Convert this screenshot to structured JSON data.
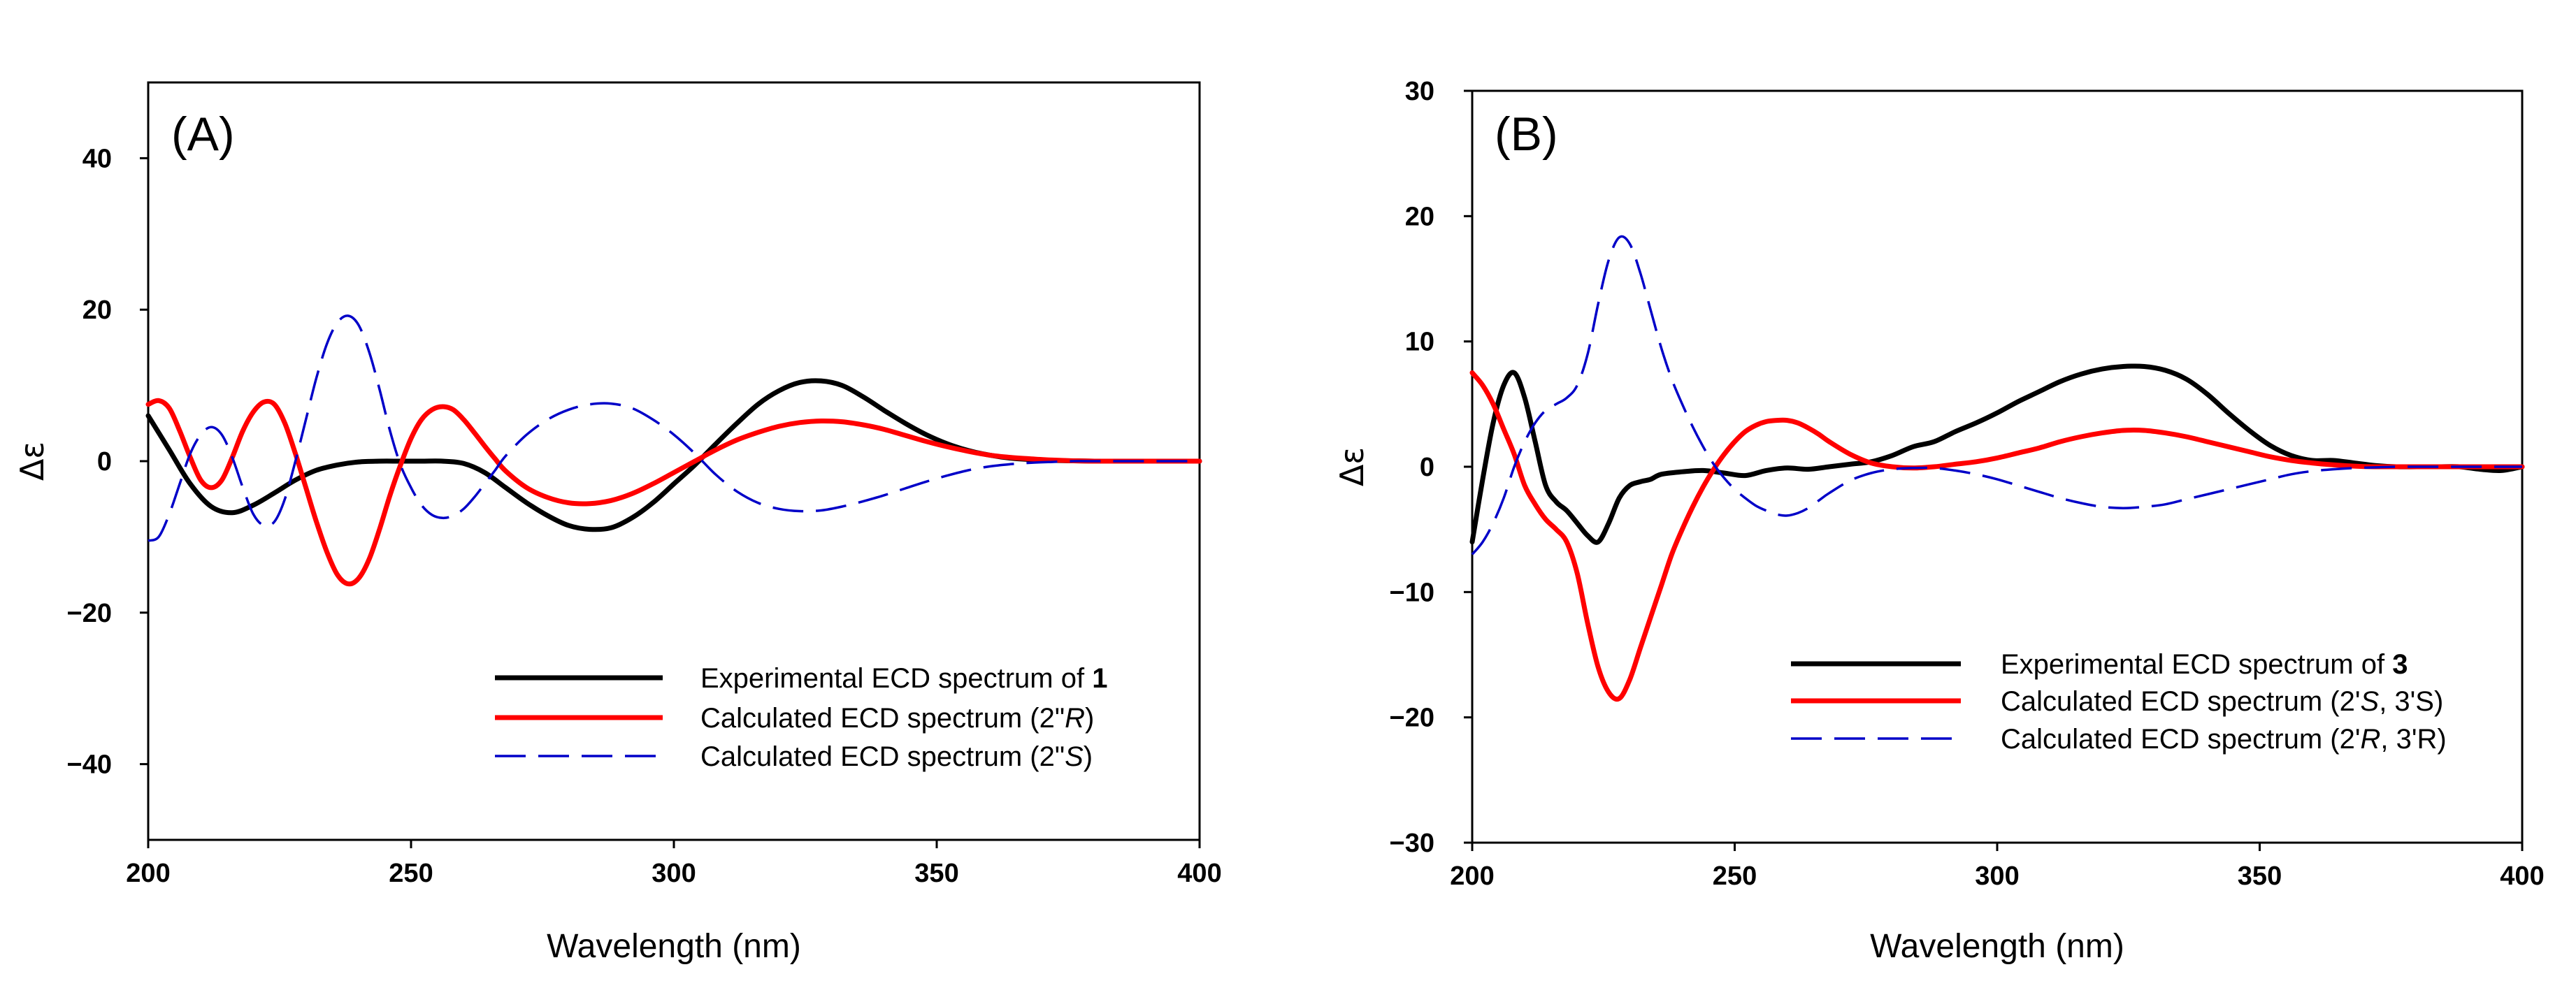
{
  "chart_data": [
    {
      "type": "line",
      "panel_label": "(A)",
      "title": "",
      "xlabel": "Wavelength (nm)",
      "ylabel": "Δε",
      "xlim": [
        200,
        400
      ],
      "ylim": [
        -50,
        50
      ],
      "x_ticks": [
        200,
        250,
        300,
        350,
        400
      ],
      "x_tick_labels": [
        "200",
        "250",
        "300",
        "350",
        "400"
      ],
      "y_ticks": [
        -40,
        -20,
        0,
        20,
        40
      ],
      "y_tick_labels": [
        "−40",
        "−20",
        "0",
        "20",
        "40"
      ],
      "legend_position": "bottom-right",
      "series": [
        {
          "name": "Experimental ECD spectrum of 1",
          "legend_text": "Experimental ECD spectrum of ",
          "legend_bold": "1",
          "legend_italic": "",
          "legend_suffix": "",
          "color": "#000000",
          "style": "solid",
          "x": [
            200,
            204,
            208,
            212,
            216,
            220,
            224,
            228,
            232,
            236,
            240,
            244,
            248,
            252,
            256,
            260,
            264,
            268,
            272,
            276,
            280,
            284,
            288,
            292,
            296,
            300,
            304,
            308,
            312,
            316,
            320,
            324,
            328,
            332,
            336,
            340,
            344,
            348,
            352,
            356,
            360,
            364,
            368,
            372,
            376,
            380,
            384,
            388,
            392,
            396,
            400
          ],
          "y": [
            6,
            1.5,
            -3,
            -6,
            -6.8,
            -5.8,
            -4.2,
            -2.5,
            -1.2,
            -0.5,
            -0.1,
            0,
            0,
            0,
            0,
            -0.3,
            -1.5,
            -3.5,
            -5.5,
            -7.2,
            -8.5,
            -9,
            -8.8,
            -7.5,
            -5.5,
            -3,
            -0.5,
            2.3,
            5,
            7.5,
            9.3,
            10.4,
            10.6,
            10,
            8.5,
            6.7,
            5,
            3.5,
            2.3,
            1.4,
            0.8,
            0.4,
            0.2,
            0.1,
            0.05,
            0,
            0,
            0,
            0,
            0,
            0
          ]
        },
        {
          "name": "Calculated ECD spectrum (2\"R)",
          "legend_text": "Calculated ECD spectrum (2\"",
          "legend_bold": "",
          "legend_italic": "R",
          "legend_suffix": ")",
          "color": "#ff0000",
          "style": "solid",
          "x": [
            200,
            202,
            204,
            206,
            208,
            210,
            212,
            214,
            216,
            218,
            220,
            222,
            224,
            226,
            228,
            230,
            232,
            234,
            236,
            238,
            240,
            242,
            244,
            246,
            248,
            250,
            252,
            254,
            256,
            258,
            260,
            262,
            264,
            266,
            268,
            272,
            276,
            280,
            284,
            288,
            292,
            296,
            300,
            304,
            308,
            312,
            316,
            320,
            324,
            328,
            332,
            336,
            340,
            344,
            348,
            352,
            356,
            360,
            364,
            368,
            372,
            376,
            380,
            384,
            388,
            392,
            396,
            400
          ],
          "y": [
            7.5,
            8,
            7,
            4,
            0.5,
            -2.5,
            -3.5,
            -2.5,
            0.5,
            4,
            6.5,
            7.8,
            7.5,
            5,
            1,
            -3.5,
            -8,
            -12,
            -15,
            -16.2,
            -15.5,
            -13,
            -9,
            -4.5,
            -0.5,
            3,
            5.5,
            6.8,
            7.2,
            6.8,
            5.5,
            3.8,
            2,
            0.3,
            -1.3,
            -3.5,
            -4.8,
            -5.5,
            -5.6,
            -5.2,
            -4.3,
            -3,
            -1.5,
            0,
            1.5,
            2.8,
            3.8,
            4.6,
            5.1,
            5.3,
            5.2,
            4.8,
            4.2,
            3.4,
            2.6,
            1.9,
            1.3,
            0.8,
            0.5,
            0.3,
            0.15,
            0.05,
            0,
            0,
            0,
            0,
            0,
            0
          ]
        },
        {
          "name": "Calculated ECD spectrum (2\"S)",
          "legend_text": "Calculated ECD spectrum (2\"",
          "legend_bold": "",
          "legend_italic": "S",
          "legend_suffix": ")",
          "color": "#0000c8",
          "style": "dashed",
          "x": [
            200,
            202,
            204,
            206,
            208,
            210,
            212,
            214,
            216,
            218,
            220,
            222,
            224,
            226,
            228,
            230,
            232,
            234,
            236,
            238,
            240,
            242,
            244,
            246,
            248,
            250,
            252,
            254,
            256,
            258,
            260,
            262,
            264,
            266,
            268,
            272,
            276,
            280,
            284,
            288,
            292,
            296,
            300,
            304,
            308,
            312,
            316,
            320,
            324,
            328,
            332,
            336,
            340,
            344,
            348,
            352,
            356,
            360,
            364,
            368,
            372,
            376,
            380,
            384,
            388,
            392,
            396,
            400
          ],
          "y": [
            -10.5,
            -10,
            -7,
            -3,
            1,
            3.5,
            4.5,
            3.5,
            0.5,
            -3.5,
            -7,
            -8.5,
            -8,
            -5,
            0,
            5.5,
            11,
            15.5,
            18.3,
            19.2,
            18,
            14.5,
            9.5,
            4,
            -0.5,
            -3.5,
            -5.8,
            -7.1,
            -7.5,
            -7.2,
            -6.3,
            -4.8,
            -3,
            -1.2,
            0.7,
            3.5,
            5.5,
            6.8,
            7.5,
            7.6,
            7,
            5.5,
            3.5,
            1,
            -1.8,
            -4,
            -5.5,
            -6.3,
            -6.6,
            -6.5,
            -6,
            -5.3,
            -4.5,
            -3.6,
            -2.7,
            -1.9,
            -1.2,
            -0.7,
            -0.4,
            -0.2,
            -0.1,
            0,
            0,
            0,
            0,
            0,
            0,
            0
          ]
        }
      ]
    },
    {
      "type": "line",
      "panel_label": "(B)",
      "title": "",
      "xlabel": "Wavelength (nm)",
      "ylabel": "Δε",
      "xlim": [
        200,
        400
      ],
      "ylim": [
        -30,
        30
      ],
      "x_ticks": [
        200,
        250,
        300,
        350,
        400
      ],
      "x_tick_labels": [
        "200",
        "250",
        "300",
        "350",
        "400"
      ],
      "y_ticks": [
        -30,
        -20,
        -10,
        0,
        10,
        20,
        30
      ],
      "y_tick_labels": [
        "−30",
        "−20",
        "−10",
        "0",
        "10",
        "20",
        "30"
      ],
      "legend_position": "bottom-right",
      "series": [
        {
          "name": "Experimental ECD spectrum of 3",
          "legend_text": "Experimental ECD spectrum of ",
          "legend_bold": "3",
          "legend_italic": "",
          "legend_suffix": "",
          "color": "#000000",
          "style": "solid",
          "x": [
            200,
            202,
            204,
            206,
            208,
            210,
            212,
            214,
            216,
            218,
            220,
            222,
            224,
            226,
            228,
            230,
            232,
            234,
            236,
            240,
            244,
            248,
            252,
            256,
            260,
            264,
            268,
            272,
            276,
            280,
            284,
            288,
            292,
            296,
            300,
            304,
            308,
            312,
            316,
            320,
            324,
            328,
            332,
            336,
            340,
            344,
            348,
            352,
            356,
            360,
            364,
            368,
            372,
            376,
            380,
            384,
            388,
            392,
            396,
            400
          ],
          "y": [
            -6,
            -1,
            3.5,
            6.5,
            7.5,
            5.5,
            2,
            -1.5,
            -2.8,
            -3.5,
            -4.5,
            -5.5,
            -6,
            -4.5,
            -2.5,
            -1.5,
            -1.2,
            -1,
            -0.6,
            -0.4,
            -0.3,
            -0.5,
            -0.7,
            -0.3,
            -0.1,
            -0.2,
            0,
            0.2,
            0.4,
            0.9,
            1.6,
            2,
            2.8,
            3.5,
            4.3,
            5.2,
            6,
            6.8,
            7.4,
            7.8,
            8,
            8,
            7.7,
            7,
            5.8,
            4.3,
            2.9,
            1.7,
            0.9,
            0.5,
            0.5,
            0.3,
            0.1,
            0,
            0,
            0,
            0,
            -0.2,
            -0.3,
            0
          ]
        },
        {
          "name": "Calculated ECD spectrum (2'S, 3'S)",
          "legend_text": "Calculated ECD spectrum (2'",
          "legend_bold": "",
          "legend_italic": "S",
          "legend_suffix": ", 3'S)",
          "color": "#ff0000",
          "style": "solid",
          "x": [
            200,
            202,
            204,
            206,
            208,
            210,
            212,
            214,
            216,
            218,
            220,
            222,
            224,
            226,
            228,
            230,
            232,
            234,
            236,
            238,
            240,
            242,
            244,
            246,
            248,
            250,
            252,
            254,
            256,
            258,
            260,
            262,
            264,
            266,
            268,
            272,
            276,
            280,
            284,
            288,
            292,
            296,
            300,
            304,
            308,
            312,
            316,
            320,
            324,
            328,
            332,
            336,
            340,
            344,
            348,
            352,
            356,
            360,
            364,
            368,
            372,
            376,
            380,
            384,
            388,
            392,
            396,
            400
          ],
          "y": [
            7.5,
            6.5,
            5,
            3,
            1,
            -1.5,
            -3,
            -4.2,
            -5,
            -6,
            -8.5,
            -12.5,
            -16,
            -18,
            -18.5,
            -17,
            -14.5,
            -12,
            -9.5,
            -7,
            -5,
            -3.2,
            -1.6,
            -0.2,
            1,
            2,
            2.8,
            3.3,
            3.6,
            3.7,
            3.7,
            3.5,
            3.1,
            2.6,
            2,
            1,
            0.3,
            0,
            -0.1,
            0,
            0.2,
            0.4,
            0.7,
            1.1,
            1.5,
            2,
            2.4,
            2.7,
            2.9,
            2.9,
            2.7,
            2.4,
            2,
            1.6,
            1.2,
            0.8,
            0.5,
            0.3,
            0.15,
            0.05,
            0,
            0,
            0,
            0,
            0,
            0,
            0,
            0
          ]
        },
        {
          "name": "Calculated ECD spectrum (2'R, 3'R)",
          "legend_text": "Calculated ECD spectrum (2'",
          "legend_bold": "",
          "legend_italic": "R",
          "legend_suffix": ", 3'R)",
          "color": "#0000c8",
          "style": "dashed",
          "x": [
            200,
            202,
            204,
            206,
            208,
            210,
            212,
            214,
            216,
            218,
            220,
            222,
            224,
            226,
            228,
            230,
            232,
            234,
            236,
            238,
            240,
            242,
            244,
            246,
            248,
            250,
            252,
            254,
            256,
            258,
            260,
            262,
            264,
            266,
            268,
            272,
            276,
            280,
            284,
            288,
            292,
            296,
            300,
            304,
            308,
            312,
            316,
            320,
            324,
            328,
            332,
            336,
            340,
            344,
            348,
            352,
            356,
            360,
            364,
            368,
            372,
            376,
            380,
            384,
            388,
            392,
            396,
            400
          ],
          "y": [
            -7,
            -6,
            -4.5,
            -2.5,
            0,
            2,
            3.5,
            4.5,
            5,
            5.5,
            6.5,
            9,
            13,
            16.5,
            18.3,
            17.8,
            15.5,
            12.5,
            9.5,
            7,
            5,
            3.2,
            1.6,
            0.2,
            -0.9,
            -1.8,
            -2.5,
            -3.1,
            -3.5,
            -3.8,
            -3.9,
            -3.7,
            -3.3,
            -2.7,
            -2.1,
            -1.1,
            -0.5,
            -0.2,
            -0.1,
            -0.1,
            -0.3,
            -0.6,
            -1,
            -1.5,
            -2,
            -2.5,
            -2.9,
            -3.2,
            -3.3,
            -3.2,
            -3,
            -2.6,
            -2.2,
            -1.8,
            -1.4,
            -1,
            -0.6,
            -0.35,
            -0.2,
            -0.1,
            -0.05,
            0,
            0,
            0,
            0,
            0,
            0,
            0
          ]
        }
      ]
    }
  ]
}
